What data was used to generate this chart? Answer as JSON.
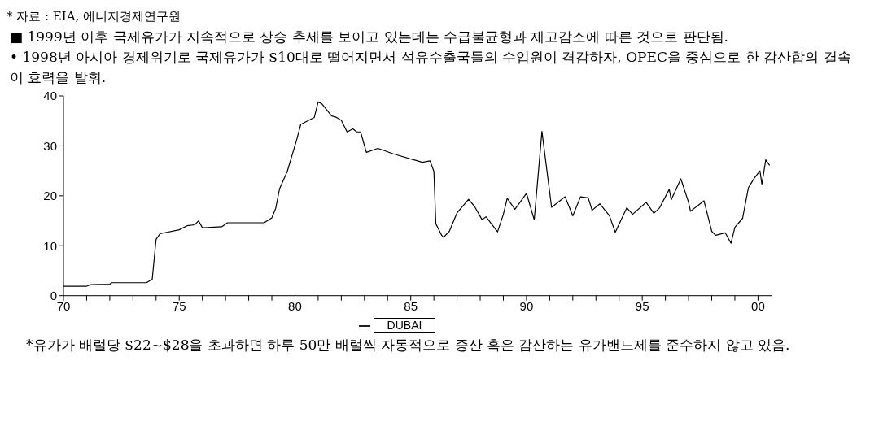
{
  "chart_data": {
    "type": "line",
    "annotations": [
      "* 자료 : EIA, 에너지경제연구원",
      "■ 1999년 이후 국제유가가 지속적으로 상승 추세를 보이고 있는데는 수급불균형과 재고감소에 따른 것으로 판단됨.",
      "• 1998년 아시아 경제위기로 국제유가가 $10대로 떨어지면서 석유수출국들의 수입원이 격감하자, OPEC을 중심으로 한 감산합의 결속이 효력을 발휘.",
      "*유가가 배럴당 $22~$28을 초과하면 하루 50만 배럴씩 자동적으로 증산 혹은 감산하는 유가밴드제를 준수하지 않고 있음."
    ],
    "x": [
      "1970-01",
      "1971-01",
      "1971-03",
      "1972-01",
      "1972-02",
      "1973-08",
      "1973-11",
      "1974-01",
      "1974-03",
      "1975-01",
      "1975-05",
      "1975-09",
      "1975-11",
      "1976-01",
      "1976-11",
      "1977-02",
      "1978-09",
      "1979-01",
      "1979-03",
      "1979-05",
      "1979-09",
      "1980-02",
      "1980-04",
      "1980-11",
      "1981-01",
      "1981-03",
      "1981-08",
      "1981-10",
      "1982-01",
      "1982-04",
      "1982-07",
      "1982-09",
      "1982-11",
      "1983-02",
      "1983-08",
      "1984-04",
      "1985-07",
      "1985-11",
      "1986-01",
      "1986-02",
      "1986-05",
      "1986-06",
      "1986-09",
      "1987-01",
      "1987-07",
      "1987-10",
      "1988-02",
      "1988-04",
      "1988-10",
      "1989-01",
      "1989-03",
      "1989-07",
      "1990-01",
      "1990-05",
      "1990-09",
      "1991-02",
      "1991-09",
      "1992-01",
      "1992-05",
      "1992-09",
      "1992-11",
      "1993-03",
      "1993-08",
      "1993-11",
      "1994-05",
      "1994-08",
      "1995-03",
      "1995-07",
      "1995-10",
      "1996-03",
      "1996-04",
      "1996-09",
      "1997-01",
      "1997-02",
      "1997-09",
      "1998-01",
      "1998-03",
      "1998-08",
      "1998-11",
      "1999-01",
      "1999-05",
      "1999-08",
      "1999-11",
      "2000-02",
      "2000-03",
      "2000-05",
      "2000-07"
    ],
    "series": [
      {
        "name": "DUBAI",
        "color": "#000000",
        "values": [
          1.9,
          1.9,
          2.2,
          2.3,
          2.6,
          2.6,
          3.3,
          11.3,
          12.4,
          13.2,
          14,
          14.2,
          15,
          13.6,
          13.8,
          14.6,
          14.6,
          15.6,
          17.5,
          21.4,
          24.9,
          31.4,
          34.3,
          35.7,
          38.8,
          38.4,
          36,
          35.8,
          35.1,
          32.8,
          33.4,
          32.8,
          32.8,
          28.7,
          29.5,
          28.4,
          26.7,
          27,
          24.9,
          14.4,
          12.1,
          11.7,
          12.9,
          16.6,
          19.3,
          17.9,
          15.2,
          15.8,
          12.8,
          16.3,
          19.5,
          17.3,
          20.5,
          15.2,
          32.9,
          17.7,
          19.8,
          16,
          19.8,
          19.6,
          17.1,
          18.4,
          16,
          12.7,
          17.6,
          16.3,
          18.7,
          16.5,
          17.6,
          21.3,
          19.2,
          23.4,
          18.7,
          16.9,
          19,
          12.9,
          12.1,
          12.6,
          10.5,
          13.7,
          15.5,
          21.6,
          23.5,
          25,
          22.3,
          27.2,
          26.1
        ]
      }
    ],
    "xlim": [
      "1970-01",
      "2000-08"
    ],
    "xticks": [
      {
        "value": "1970",
        "label": "70"
      },
      {
        "value": "1971",
        "label": null
      },
      {
        "value": "1972",
        "label": null
      },
      {
        "value": "1973",
        "label": null
      },
      {
        "value": "1974",
        "label": null
      },
      {
        "value": "1975",
        "label": "75"
      },
      {
        "value": "1976",
        "label": null
      },
      {
        "value": "1977",
        "label": null
      },
      {
        "value": "1978",
        "label": null
      },
      {
        "value": "1979",
        "label": null
      },
      {
        "value": "1980",
        "label": "80"
      },
      {
        "value": "1981",
        "label": null
      },
      {
        "value": "1982",
        "label": null
      },
      {
        "value": "1983",
        "label": null
      },
      {
        "value": "1984",
        "label": null
      },
      {
        "value": "1985",
        "label": "85"
      },
      {
        "value": "1986",
        "label": null
      },
      {
        "value": "1987",
        "label": null
      },
      {
        "value": "1988",
        "label": null
      },
      {
        "value": "1989",
        "label": null
      },
      {
        "value": "1990",
        "label": "90"
      },
      {
        "value": "1991",
        "label": null
      },
      {
        "value": "1992",
        "label": null
      },
      {
        "value": "1993",
        "label": null
      },
      {
        "value": "1994",
        "label": null
      },
      {
        "value": "1995",
        "label": "95"
      },
      {
        "value": "1996",
        "label": null
      },
      {
        "value": "1997",
        "label": null
      },
      {
        "value": "1998",
        "label": null
      },
      {
        "value": "1999",
        "label": null
      },
      {
        "value": "2000",
        "label": "00"
      }
    ],
    "ylim": [
      0,
      40
    ],
    "yticks": [
      0,
      10,
      20,
      30,
      40
    ],
    "grid": false,
    "legend": "bottom",
    "marker": "none",
    "line_style": "solid"
  }
}
